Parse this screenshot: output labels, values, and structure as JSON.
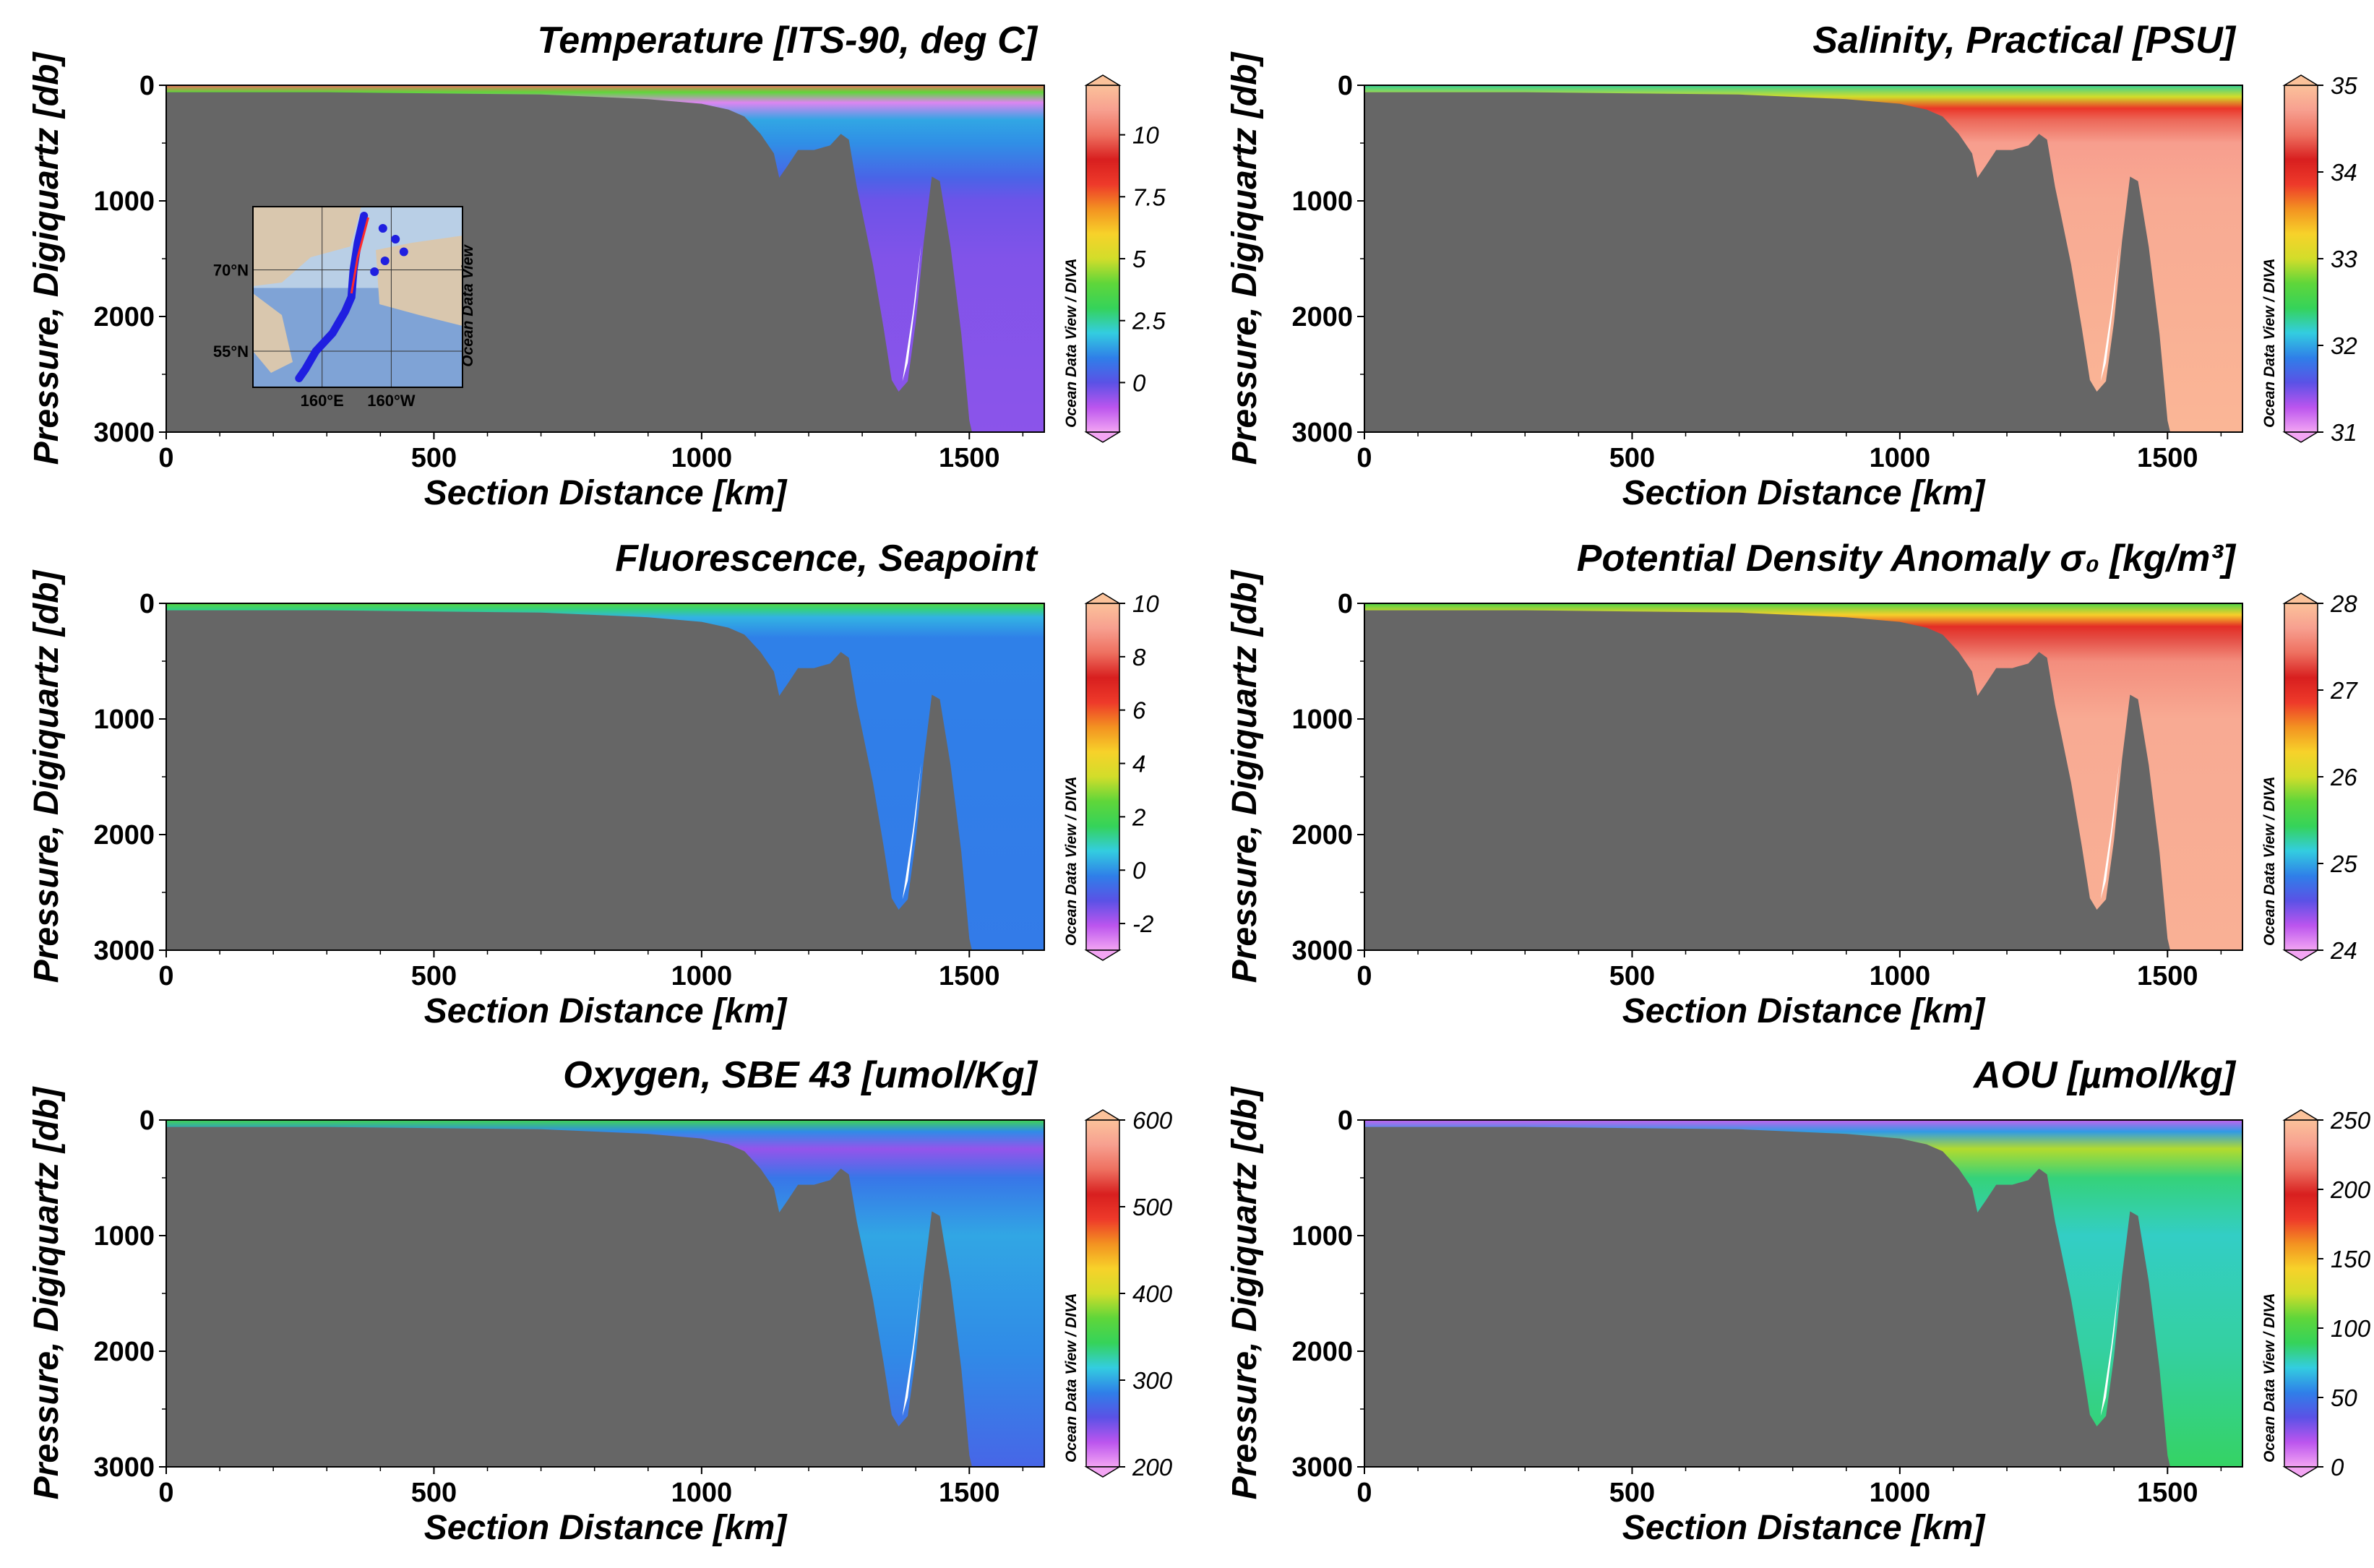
{
  "colors": {
    "terrain": "#666666",
    "gap": "#ffffff",
    "track": "#1f1fe0",
    "track_start": "#ff2a2a",
    "odv_scale": [
      "#f3a5f3",
      "#bb55ee",
      "#5a52e6",
      "#2f7fe8",
      "#33cde0",
      "#35d35a",
      "#5fd63a",
      "#d2dd2a",
      "#f7d22a",
      "#f39221",
      "#ee3a2a",
      "#d81f1f",
      "#ee7060",
      "#f7a090",
      "#fbc29a"
    ]
  },
  "map_inset": {
    "lat_labels": [
      "70°N",
      "55°N"
    ],
    "lon_labels": [
      "160°E",
      "160°W"
    ],
    "watermark": "Ocean Data View"
  },
  "chart_data": [
    {
      "type": "heatmap",
      "panel": "temperature",
      "title": "Temperature [ITS-90, deg C]",
      "xlabel": "Section Distance [km]",
      "ylabel": "Pressure, Digiquartz [db]",
      "xlim": [
        0,
        1640
      ],
      "ylim": [
        3000,
        0
      ],
      "x_ticks": [
        "0",
        "500",
        "1000",
        "1500"
      ],
      "y_ticks": [
        "0",
        "1000",
        "2000",
        "3000"
      ],
      "colorbar": {
        "range": [
          -2,
          12
        ],
        "ticks": [
          {
            "v": 10,
            "t": "10"
          },
          {
            "v": 7.5,
            "t": "7.5"
          },
          {
            "v": 5,
            "t": "5"
          },
          {
            "v": 2.5,
            "t": "2.5"
          },
          {
            "v": 0,
            "t": "0"
          }
        ],
        "label": "Ocean Data View / DIVA"
      },
      "field": [
        {
          "p": 0,
          "v": 10
        },
        {
          "p": 60,
          "v": 4
        },
        {
          "p": 150,
          "v": -1.6
        },
        {
          "p": 300,
          "v": 1.5
        },
        {
          "p": 500,
          "v": 1.2
        },
        {
          "p": 800,
          "v": 0.4
        },
        {
          "p": 1000,
          "v": -0.2
        },
        {
          "p": 1500,
          "v": -0.4
        },
        {
          "p": 3000,
          "v": -0.5
        }
      ],
      "has_map_inset": true
    },
    {
      "type": "heatmap",
      "panel": "salinity",
      "title": "Salinity, Practical [PSU]",
      "xlabel": "Section Distance [km]",
      "ylabel": "Pressure, Digiquartz [db]",
      "xlim": [
        0,
        1640
      ],
      "ylim": [
        3000,
        0
      ],
      "x_ticks": [
        "0",
        "500",
        "1000",
        "1500"
      ],
      "y_ticks": [
        "0",
        "1000",
        "2000",
        "3000"
      ],
      "colorbar": {
        "range": [
          31,
          35
        ],
        "ticks": [
          {
            "v": 35,
            "t": "35"
          },
          {
            "v": 34,
            "t": "34"
          },
          {
            "v": 33,
            "t": "33"
          },
          {
            "v": 32,
            "t": "32"
          },
          {
            "v": 31,
            "t": "31"
          }
        ],
        "label": "Ocean Data View / DIVA"
      },
      "field": [
        {
          "p": 0,
          "v": 32.3
        },
        {
          "p": 100,
          "v": 33.0
        },
        {
          "p": 200,
          "v": 33.9
        },
        {
          "p": 300,
          "v": 34.4
        },
        {
          "p": 500,
          "v": 34.7
        },
        {
          "p": 1000,
          "v": 34.8
        },
        {
          "p": 3000,
          "v": 34.9
        }
      ],
      "has_map_inset": false
    },
    {
      "type": "heatmap",
      "panel": "fluorescence",
      "title": "Fluorescence, Seapoint",
      "xlabel": "Section Distance [km]",
      "ylabel": "Pressure, Digiquartz [db]",
      "xlim": [
        0,
        1640
      ],
      "ylim": [
        3000,
        0
      ],
      "x_ticks": [
        "0",
        "500",
        "1000",
        "1500"
      ],
      "y_ticks": [
        "0",
        "1000",
        "2000",
        "3000"
      ],
      "colorbar": {
        "range": [
          -3,
          10
        ],
        "ticks": [
          {
            "v": 10,
            "t": "10"
          },
          {
            "v": 8,
            "t": "8"
          },
          {
            "v": 6,
            "t": "6"
          },
          {
            "v": 4,
            "t": "4"
          },
          {
            "v": 2,
            "t": "2"
          },
          {
            "v": 0,
            "t": "0"
          },
          {
            "v": -2,
            "t": "-2"
          }
        ],
        "label": "Ocean Data View / DIVA"
      },
      "field": [
        {
          "p": 0,
          "v": 2.4
        },
        {
          "p": 50,
          "v": 1.4
        },
        {
          "p": 120,
          "v": 0.4
        },
        {
          "p": 300,
          "v": -0.2
        },
        {
          "p": 3000,
          "v": -0.3
        }
      ],
      "has_map_inset": false
    },
    {
      "type": "heatmap",
      "panel": "density",
      "title": "Potential Density Anomaly σ₀ [kg/m³]",
      "xlabel": "Section Distance [km]",
      "ylabel": "Pressure, Digiquartz [db]",
      "xlim": [
        0,
        1640
      ],
      "ylim": [
        3000,
        0
      ],
      "x_ticks": [
        "0",
        "500",
        "1000",
        "1500"
      ],
      "y_ticks": [
        "0",
        "1000",
        "2000",
        "3000"
      ],
      "colorbar": {
        "range": [
          24,
          28
        ],
        "ticks": [
          {
            "v": 28,
            "t": "28"
          },
          {
            "v": 27,
            "t": "27"
          },
          {
            "v": 26,
            "t": "26"
          },
          {
            "v": 25,
            "t": "25"
          },
          {
            "v": 24,
            "t": "24"
          }
        ],
        "label": "Ocean Data View / DIVA"
      },
      "field": [
        {
          "p": 0,
          "v": 25.6
        },
        {
          "p": 100,
          "v": 26.3
        },
        {
          "p": 200,
          "v": 27.0
        },
        {
          "p": 300,
          "v": 27.3
        },
        {
          "p": 500,
          "v": 27.6
        },
        {
          "p": 1000,
          "v": 27.8
        },
        {
          "p": 3000,
          "v": 27.85
        }
      ],
      "has_map_inset": false
    },
    {
      "type": "heatmap",
      "panel": "oxygen",
      "title": "Oxygen, SBE 43 [umol/Kg]",
      "xlabel": "Section Distance [km]",
      "ylabel": "Pressure, Digiquartz [db]",
      "xlim": [
        0,
        1640
      ],
      "ylim": [
        3000,
        0
      ],
      "x_ticks": [
        "0",
        "500",
        "1000",
        "1500"
      ],
      "y_ticks": [
        "0",
        "1000",
        "2000",
        "3000"
      ],
      "colorbar": {
        "range": [
          200,
          600
        ],
        "ticks": [
          {
            "v": 600,
            "t": "600"
          },
          {
            "v": 500,
            "t": "500"
          },
          {
            "v": 400,
            "t": "400"
          },
          {
            "v": 300,
            "t": "300"
          },
          {
            "v": 200,
            "t": "200"
          }
        ],
        "label": "Ocean Data View / DIVA"
      },
      "field": [
        {
          "p": 0,
          "v": 350
        },
        {
          "p": 100,
          "v": 290
        },
        {
          "p": 250,
          "v": 240
        },
        {
          "p": 500,
          "v": 280
        },
        {
          "p": 1000,
          "v": 300
        },
        {
          "p": 2000,
          "v": 290
        },
        {
          "p": 3000,
          "v": 270
        }
      ],
      "has_map_inset": false
    },
    {
      "type": "heatmap",
      "panel": "aou",
      "title": "AOU [µmol/kg]",
      "xlabel": "Section Distance [km]",
      "ylabel": "Pressure, Digiquartz [db]",
      "xlim": [
        0,
        1640
      ],
      "ylim": [
        3000,
        0
      ],
      "x_ticks": [
        "0",
        "500",
        "1000",
        "1500"
      ],
      "y_ticks": [
        "0",
        "1000",
        "2000",
        "3000"
      ],
      "colorbar": {
        "range": [
          0,
          250
        ],
        "ticks": [
          {
            "v": 250,
            "t": "250"
          },
          {
            "v": 200,
            "t": "200"
          },
          {
            "v": 150,
            "t": "150"
          },
          {
            "v": 100,
            "t": "100"
          },
          {
            "v": 50,
            "t": "50"
          },
          {
            "v": 0,
            "t": "0"
          }
        ],
        "label": "Ocean Data View / DIVA"
      },
      "field": [
        {
          "p": 0,
          "v": 15
        },
        {
          "p": 100,
          "v": 60
        },
        {
          "p": 250,
          "v": 120
        },
        {
          "p": 500,
          "v": 85
        },
        {
          "p": 1000,
          "v": 75
        },
        {
          "p": 2000,
          "v": 80
        },
        {
          "p": 3000,
          "v": 88
        }
      ],
      "has_map_inset": false
    }
  ],
  "bathymetry": {
    "units": [
      "km",
      "db"
    ],
    "profile": [
      [
        0,
        60
      ],
      [
        300,
        60
      ],
      [
        500,
        70
      ],
      [
        700,
        80
      ],
      [
        900,
        120
      ],
      [
        1000,
        160
      ],
      [
        1050,
        210
      ],
      [
        1080,
        270
      ],
      [
        1110,
        420
      ],
      [
        1135,
        590
      ],
      [
        1145,
        800
      ],
      [
        1160,
        700
      ],
      [
        1180,
        560
      ],
      [
        1210,
        560
      ],
      [
        1240,
        520
      ],
      [
        1260,
        420
      ],
      [
        1275,
        470
      ],
      [
        1290,
        880
      ],
      [
        1300,
        1100
      ],
      [
        1320,
        1550
      ],
      [
        1340,
        2100
      ],
      [
        1355,
        2550
      ],
      [
        1368,
        2650
      ],
      [
        1385,
        2560
      ],
      [
        1400,
        2050
      ],
      [
        1415,
        1350
      ],
      [
        1430,
        790
      ],
      [
        1445,
        830
      ],
      [
        1465,
        1400
      ],
      [
        1485,
        2150
      ],
      [
        1500,
        2900
      ],
      [
        1505,
        3000
      ]
    ],
    "gap_polygon": [
      [
        1375,
        2560
      ],
      [
        1395,
        1950
      ],
      [
        1410,
        1380
      ],
      [
        1400,
        1850
      ],
      [
        1385,
        2400
      ]
    ]
  }
}
